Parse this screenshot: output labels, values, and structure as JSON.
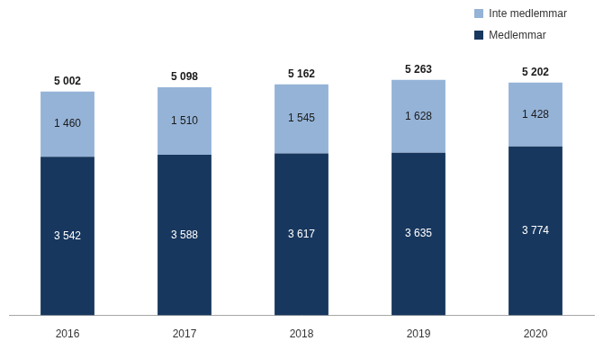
{
  "chart_data": {
    "type": "bar",
    "stacked": true,
    "data_labels": true,
    "tick_labels": "x",
    "grid": false,
    "legend": "upper right",
    "categories": [
      "2016",
      "2017",
      "2018",
      "2019",
      "2020"
    ],
    "series": [
      {
        "name": "Medlemmar",
        "color": "#17375e",
        "values": [
          3542,
          3588,
          3617,
          3635,
          3774
        ],
        "value_labels": [
          "3 542",
          "3 588",
          "3 617",
          "3 635",
          "3 774"
        ]
      },
      {
        "name": "Inte medlemmar",
        "color": "#95b3d7",
        "values": [
          1460,
          1510,
          1545,
          1628,
          1428
        ],
        "value_labels": [
          "1 460",
          "1 510",
          "1 545",
          "1 628",
          "1 428"
        ]
      }
    ],
    "totals": {
      "values": [
        5002,
        5098,
        5162,
        5263,
        5202
      ],
      "value_labels": [
        "5 002",
        "5 098",
        "5 162",
        "5 263",
        "5 202"
      ]
    }
  }
}
